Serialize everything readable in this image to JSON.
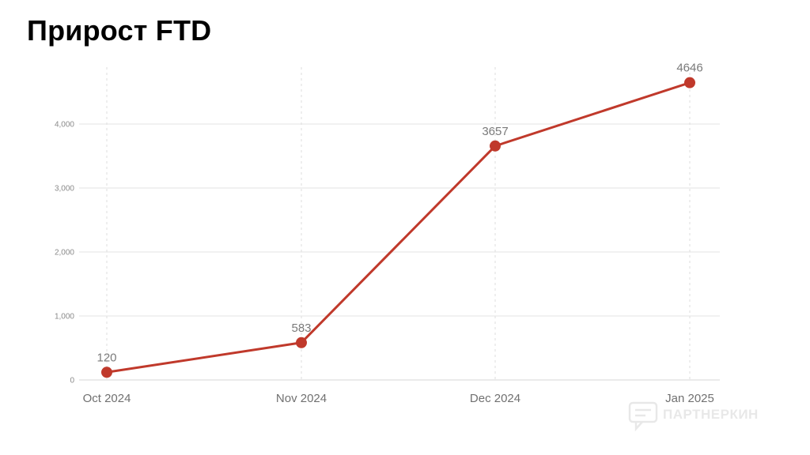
{
  "title": "Прирост FTD",
  "watermark": "ПАРТНЕРКИН",
  "colors": {
    "line": "#c0392b",
    "grid": "#e3e3e3",
    "vgrid": "#dcdcdc"
  },
  "chart_data": {
    "type": "line",
    "categories": [
      "Oct 2024",
      "Nov 2024",
      "Dec 2024",
      "Jan 2025"
    ],
    "values": [
      120,
      583,
      3657,
      4646
    ],
    "data_labels": [
      "120",
      "583",
      "3657",
      "4646"
    ],
    "y_ticks": [
      0,
      1000,
      2000,
      3000,
      4000
    ],
    "y_tick_labels": [
      "0",
      "1,000",
      "2,000",
      "3,000",
      "4,000"
    ],
    "ylim": [
      0,
      4700
    ],
    "grid": true,
    "legend": "none"
  }
}
